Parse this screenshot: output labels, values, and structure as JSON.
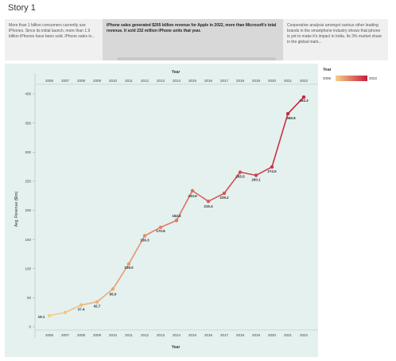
{
  "story": {
    "title": "Story 1"
  },
  "story_points": [
    {
      "text": "More than 1 billion consumers currently use iPhones. Since its initial launch, more than 1.9 billion iPhones have been sold. iPhone sales in..."
    },
    {
      "text": "iPhone sales generated $205 billion revenue for Apple in 2022, more than Microsoft's total revenue. It sold 232 million iPhone units that year."
    },
    {
      "text": "Cooperative analysis amongst various other leading brands in the smartphone industry shows that iphone is yet to make it's impact in India. Its 3% market share in the global mark..."
    }
  ],
  "legend": {
    "title": "Year",
    "min_label": "2006",
    "max_label": "2022",
    "color_low": "#f5d08a",
    "color_high": "#c81e3a"
  },
  "chart_data": {
    "type": "line",
    "title": "",
    "xlabel": "Year",
    "ylabel": "Avg. Revenue ($bn)",
    "x": [
      "2006",
      "2007",
      "2008",
      "2009",
      "2010",
      "2011",
      "2012",
      "2013",
      "2014",
      "2015",
      "2016",
      "2017",
      "2018",
      "2019",
      "2020",
      "2021",
      "2022"
    ],
    "values": [
      19.1,
      24.6,
      37.4,
      42.7,
      65.0,
      108.0,
      156.3,
      170.8,
      182.6,
      233.6,
      215.4,
      229.2,
      265.5,
      260.1,
      274.5,
      365.8,
      394.3
    ],
    "data_labels": [
      "19.1",
      "",
      "37.4",
      "42.7",
      "65.0",
      "108.0",
      "156.3",
      "170.8",
      "182.6",
      "233.6",
      "215.4",
      "229.2",
      "265.5",
      "260.1",
      "274.5",
      "365.8",
      "394.3"
    ],
    "y_ticks": [
      "0",
      "50",
      "100",
      "150",
      "200",
      "250",
      "300",
      "350",
      "400"
    ],
    "ylim": [
      0,
      420
    ],
    "grid": false,
    "legend_position": "top-right"
  }
}
